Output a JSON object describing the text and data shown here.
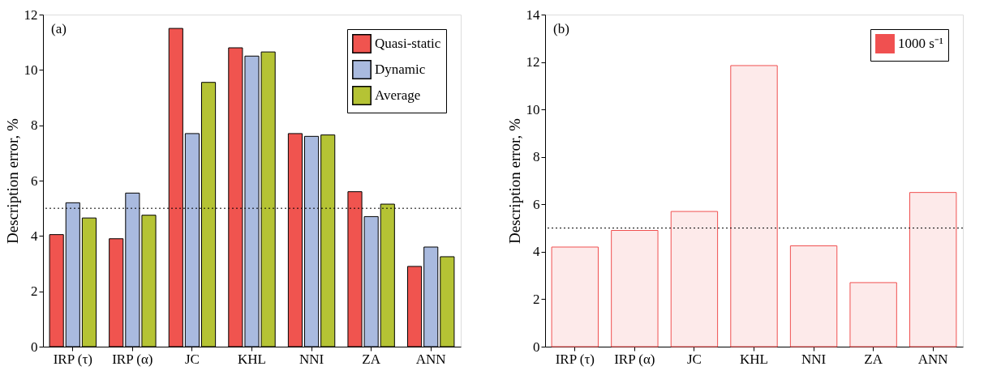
{
  "chart_data": [
    {
      "type": "bar",
      "annotations": [
        "(a)"
      ],
      "ylabel": "Description error, %",
      "categories": [
        "IRP (τ)",
        "IRP (α)",
        "JC",
        "KHL",
        "NNI",
        "ZA",
        "ANN"
      ],
      "series": [
        {
          "name": "Quasi-static",
          "color": "#f0544f",
          "values": [
            4.05,
            3.9,
            11.5,
            10.8,
            7.7,
            5.6,
            2.9
          ]
        },
        {
          "name": "Dynamic",
          "color": "#a9badf",
          "values": [
            5.2,
            5.55,
            7.7,
            10.5,
            7.6,
            4.7,
            3.6
          ]
        },
        {
          "name": "Average",
          "color": "#b5c334",
          "values": [
            4.65,
            4.75,
            9.55,
            10.65,
            7.65,
            5.15,
            3.25
          ]
        }
      ],
      "ylim": [
        0,
        12
      ],
      "yticks": [
        0,
        2,
        4,
        6,
        8,
        10,
        12
      ],
      "grid": false,
      "legend": "top right",
      "ref_lines": [
        {
          "axis": "y",
          "value": 5,
          "line_style": "dotted"
        }
      ]
    },
    {
      "type": "bar",
      "annotations": [
        "(b)"
      ],
      "ylabel": "Description error, %",
      "categories": [
        "IRP (τ)",
        "IRP (α)",
        "JC",
        "KHL",
        "NNI",
        "ZA",
        "ANN"
      ],
      "series": [
        {
          "name": "1000 s⁻¹",
          "color": "#f05050",
          "values": [
            4.2,
            4.9,
            5.7,
            11.85,
            4.25,
            2.7,
            6.5
          ]
        }
      ],
      "ylim": [
        0,
        14
      ],
      "yticks": [
        0,
        2,
        4,
        6,
        8,
        10,
        12,
        14
      ],
      "grid": false,
      "legend": "top right",
      "ref_lines": [
        {
          "axis": "y",
          "value": 5,
          "line_style": "dotted"
        }
      ]
    }
  ]
}
